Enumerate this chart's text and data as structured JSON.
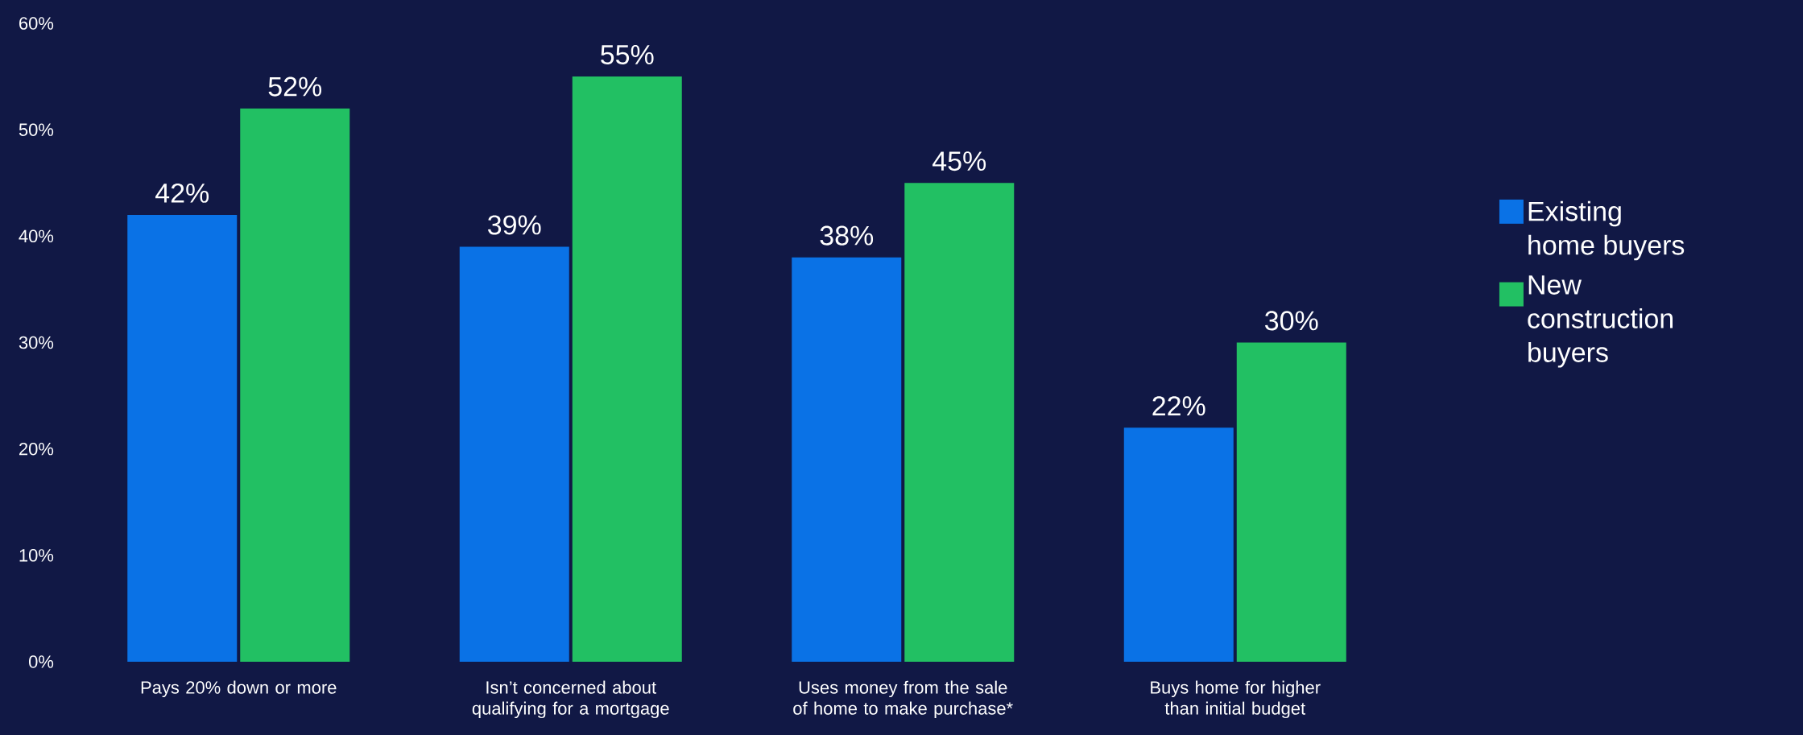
{
  "chart_data": {
    "type": "bar",
    "categories": [
      "Pays 20% down or more",
      "Isn’t concerned about qualifying for a mortgage",
      "Uses money from the sale of home to make purchase*",
      "Buys home for higher than initial budget"
    ],
    "series": [
      {
        "name": "Existing home buyers",
        "color": "#0a72e6",
        "values": [
          42,
          39,
          38,
          22
        ],
        "value_labels": [
          "42%",
          "39%",
          "38%",
          "22%"
        ]
      },
      {
        "name": "New construction buyers",
        "color": "#22c063",
        "values": [
          52,
          55,
          45,
          30
        ],
        "value_labels": [
          "52%",
          "55%",
          "45%",
          "30%"
        ]
      }
    ],
    "ylim": [
      0,
      60
    ],
    "yticks": [
      {
        "value": 0,
        "label": "0%"
      },
      {
        "value": 10,
        "label": "10%"
      },
      {
        "value": 20,
        "label": "20%"
      },
      {
        "value": 30,
        "label": "30%"
      },
      {
        "value": 40,
        "label": "40%"
      },
      {
        "value": 50,
        "label": "50%"
      },
      {
        "value": 60,
        "label": "60%"
      }
    ],
    "grid": false,
    "legend": "right"
  }
}
